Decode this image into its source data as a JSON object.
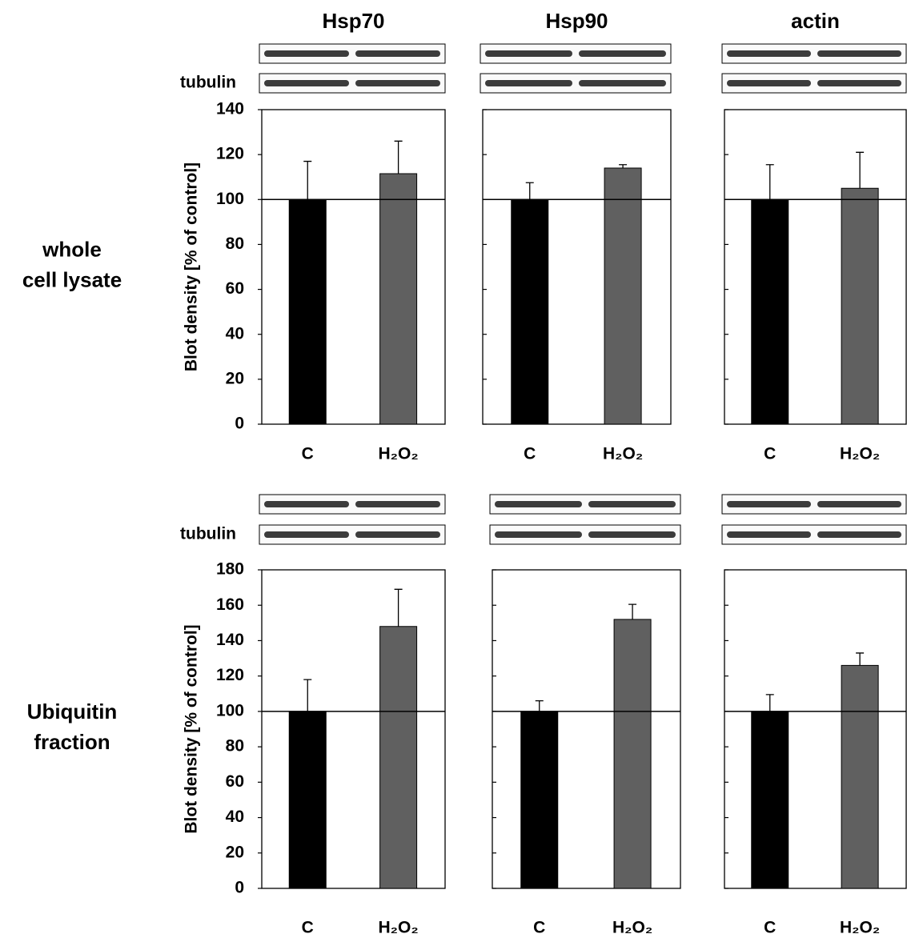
{
  "chart_data": [
    {
      "type": "bar",
      "title": "Hsp70",
      "row_label": "whole cell lysate",
      "ylabel": "Blot density [% of control]",
      "blot_label": "tubulin",
      "categories": [
        "C",
        "H₂O₂"
      ],
      "values": [
        100,
        111.5
      ],
      "errors": [
        17,
        14.5
      ],
      "colors": [
        "#000000",
        "#606060"
      ],
      "ylim": [
        0,
        140
      ],
      "yticks": [
        0,
        20,
        40,
        60,
        80,
        100,
        120,
        140
      ],
      "tick_labels": true,
      "hline": 100
    },
    {
      "type": "bar",
      "title": "Hsp90",
      "categories": [
        "C",
        "H₂O₂"
      ],
      "values": [
        100,
        114
      ],
      "errors": [
        7.5,
        1.5
      ],
      "colors": [
        "#000000",
        "#606060"
      ],
      "ylim": [
        0,
        140
      ],
      "yticks": [
        0,
        20,
        40,
        60,
        80,
        100,
        120,
        140
      ],
      "tick_labels": false,
      "hline": 100
    },
    {
      "type": "bar",
      "title": "actin",
      "categories": [
        "C",
        "H₂O₂"
      ],
      "values": [
        100,
        105
      ],
      "errors": [
        15.5,
        16
      ],
      "colors": [
        "#000000",
        "#606060"
      ],
      "ylim": [
        0,
        140
      ],
      "yticks": [
        0,
        20,
        40,
        60,
        80,
        100,
        120,
        140
      ],
      "tick_labels": false,
      "hline": 100
    },
    {
      "type": "bar",
      "row_label": "Ubiquitin fraction",
      "ylabel": "Blot density [% of control]",
      "blot_label": "tubulin",
      "categories": [
        "C",
        "H₂O₂"
      ],
      "values": [
        100,
        148
      ],
      "errors": [
        18,
        21
      ],
      "colors": [
        "#000000",
        "#606060"
      ],
      "ylim": [
        0,
        180
      ],
      "yticks": [
        0,
        20,
        40,
        60,
        80,
        100,
        120,
        140,
        160,
        180
      ],
      "tick_labels": true,
      "hline": 100
    },
    {
      "type": "bar",
      "categories": [
        "C",
        "H₂O₂"
      ],
      "values": [
        100,
        152
      ],
      "errors": [
        6,
        8.5
      ],
      "colors": [
        "#000000",
        "#606060"
      ],
      "ylim": [
        0,
        180
      ],
      "yticks": [
        0,
        20,
        40,
        60,
        80,
        100,
        120,
        140,
        160,
        180
      ],
      "tick_labels": false,
      "hline": 100
    },
    {
      "type": "bar",
      "categories": [
        "C",
        "H₂O₂"
      ],
      "values": [
        100,
        126
      ],
      "errors": [
        9.5,
        7
      ],
      "colors": [
        "#000000",
        "#606060"
      ],
      "ylim": [
        0,
        180
      ],
      "yticks": [
        0,
        20,
        40,
        60,
        80,
        100,
        120,
        140,
        160,
        180
      ],
      "tick_labels": false,
      "hline": 100
    }
  ]
}
